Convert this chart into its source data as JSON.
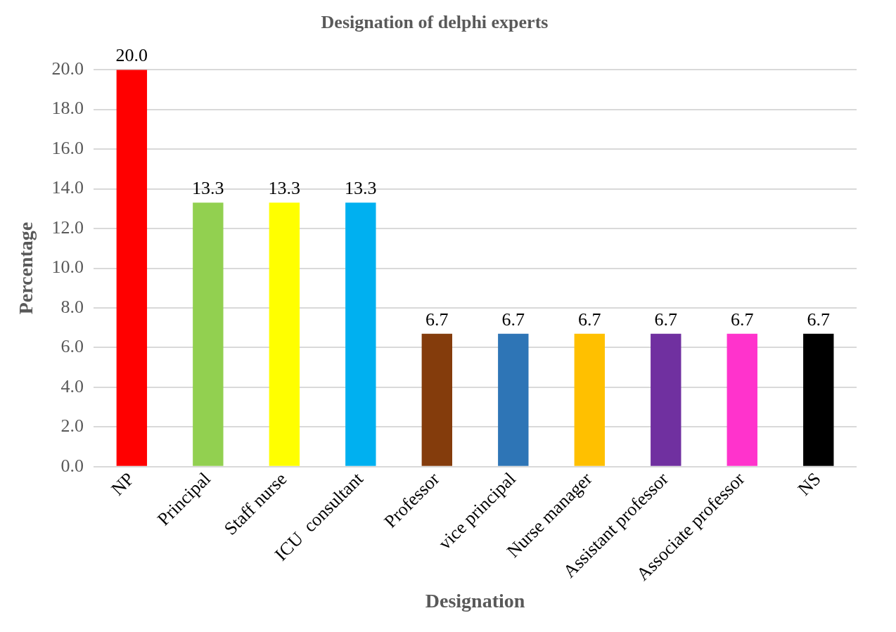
{
  "chart_data": {
    "type": "bar",
    "title": "Designation of delphi experts",
    "xlabel": "Designation",
    "ylabel": "Percentage",
    "categories": [
      "NP",
      "Principal",
      "Staff nurse",
      "ICU  consultant",
      "Professor",
      "vice principal",
      "Nurse manager",
      "Assistant professor",
      "Associate professor",
      "NS"
    ],
    "values": [
      20.0,
      13.3,
      13.3,
      13.3,
      6.7,
      6.7,
      6.7,
      6.7,
      6.7,
      6.7
    ],
    "colors": [
      "#ff0000",
      "#92d050",
      "#ffff00",
      "#00b0f0",
      "#843c0c",
      "#2e75b6",
      "#ffc000",
      "#7030a0",
      "#ff33cc",
      "#000000"
    ],
    "value_labels": [
      "20.0",
      "13.3",
      "13.3",
      "13.3",
      "6.7",
      "6.7",
      "6.7",
      "6.7",
      "6.7",
      "6.7"
    ],
    "ylim": [
      0,
      20
    ],
    "yticks": [
      {
        "value": 0,
        "label": "0.0"
      },
      {
        "value": 2,
        "label": "2.0"
      },
      {
        "value": 4,
        "label": "4.0"
      },
      {
        "value": 6,
        "label": "6.0"
      },
      {
        "value": 8,
        "label": "8.0"
      },
      {
        "value": 10,
        "label": "10.0"
      },
      {
        "value": 12,
        "label": "12.0"
      },
      {
        "value": 14,
        "label": "14.0"
      },
      {
        "value": 16,
        "label": "16.0"
      },
      {
        "value": 18,
        "label": "18.0"
      },
      {
        "value": 20,
        "label": "20.0"
      }
    ],
    "grid": "y",
    "legend": false
  }
}
